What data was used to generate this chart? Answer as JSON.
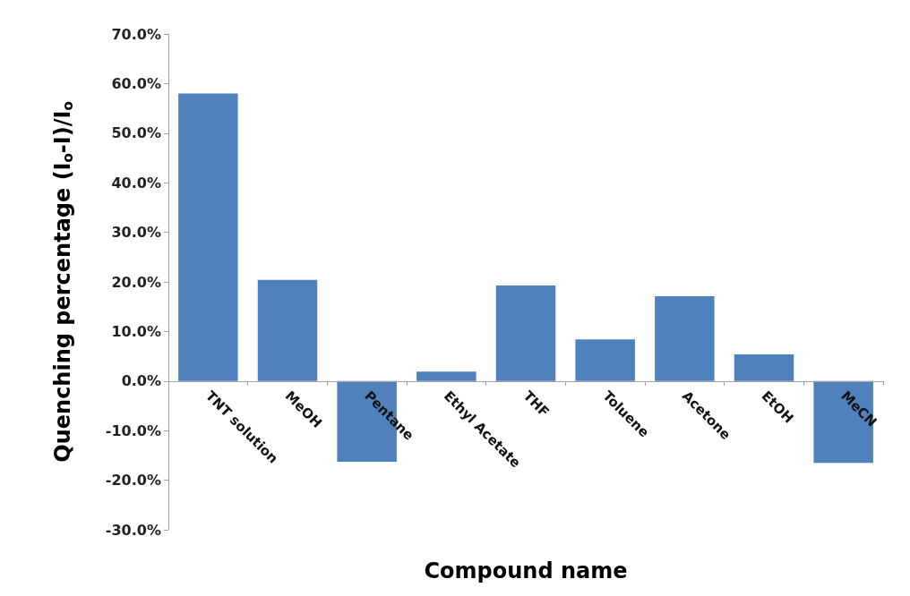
{
  "chart_data": {
    "type": "bar",
    "xlabel": "Compound name",
    "ylabel": "Quenching percentage (I$_{o}$-I)/I$_{o}$",
    "categories": [
      "TNT solution",
      "MeOH",
      "Pentane",
      "Ethyl Acetate",
      "THF",
      "Toluene",
      "Acetone",
      "EtOH",
      "MeCN"
    ],
    "values": [
      58.0,
      20.4,
      -16.3,
      1.9,
      19.3,
      8.4,
      17.1,
      5.4,
      -16.5
    ],
    "color": "#4f81bd",
    "ylim": [
      -30,
      70
    ],
    "yticks": [
      {
        "value": -30,
        "label": "-30.0%"
      },
      {
        "value": -20,
        "label": "-20.0%"
      },
      {
        "value": -10,
        "label": "-10.0%"
      },
      {
        "value": 0,
        "label": "0.0%"
      },
      {
        "value": 10,
        "label": "10.0%"
      },
      {
        "value": 20,
        "label": "20.0%"
      },
      {
        "value": 30,
        "label": "30.0%"
      },
      {
        "value": 40,
        "label": "40.0%"
      },
      {
        "value": 50,
        "label": "50.0%"
      },
      {
        "value": 60,
        "label": "60.0%"
      },
      {
        "value": 70,
        "label": "70.0%"
      }
    ],
    "line_style": "solid"
  }
}
